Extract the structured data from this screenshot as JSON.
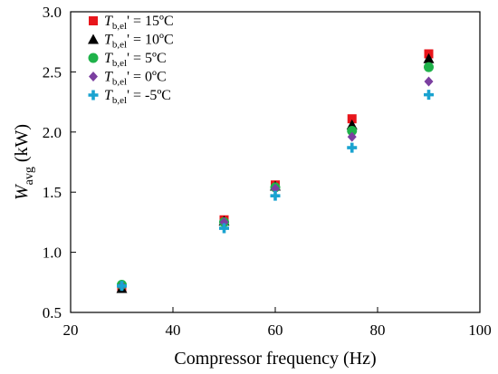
{
  "chart_data": {
    "type": "scatter",
    "xlabel": "Compressor frequency (Hz)",
    "ylabel": {
      "main": "W",
      "sub": "avg",
      "unit": " (kW)"
    },
    "xlim": [
      20,
      100
    ],
    "ylim": [
      0.5,
      3.0
    ],
    "xticks": [
      "20",
      "40",
      "60",
      "80",
      "100"
    ],
    "yticks": [
      "0.5",
      "1.0",
      "1.5",
      "2.0",
      "2.5",
      "3.0"
    ],
    "grid": false,
    "legend_position": "top-left",
    "series": [
      {
        "label_main": "T",
        "label_sub": "b,el",
        "label_rest": "' = 15ºC",
        "marker": "square",
        "color": "#e8151b",
        "x": [
          30,
          50,
          60,
          75,
          90
        ],
        "y": [
          0.7,
          1.27,
          1.56,
          2.11,
          2.65
        ]
      },
      {
        "label_main": "T",
        "label_sub": "b,el",
        "label_rest": "' = 10ºC",
        "marker": "triangle",
        "color": "#000000",
        "x": [
          30,
          50,
          60,
          75,
          90
        ],
        "y": [
          0.7,
          1.26,
          1.55,
          2.06,
          2.61
        ]
      },
      {
        "label_main": "T",
        "label_sub": "b,el",
        "label_rest": "' = 5ºC",
        "marker": "circle",
        "color": "#1fb24a",
        "x": [
          30,
          50,
          60,
          75,
          90
        ],
        "y": [
          0.73,
          1.25,
          1.54,
          2.01,
          2.54
        ]
      },
      {
        "label_main": "T",
        "label_sub": "b,el",
        "label_rest": "' = 0ºC",
        "marker": "diamond",
        "color": "#7b3fa0",
        "x": [
          30,
          50,
          60,
          75,
          90
        ],
        "y": [
          0.72,
          1.25,
          1.53,
          1.96,
          2.42
        ]
      },
      {
        "label_main": "T",
        "label_sub": "b,el",
        "label_rest": "' = -5ºC",
        "marker": "plus",
        "color": "#1aa3d0",
        "x": [
          30,
          50,
          60,
          75,
          90
        ],
        "y": [
          0.72,
          1.2,
          1.47,
          1.87,
          2.31
        ]
      }
    ]
  }
}
